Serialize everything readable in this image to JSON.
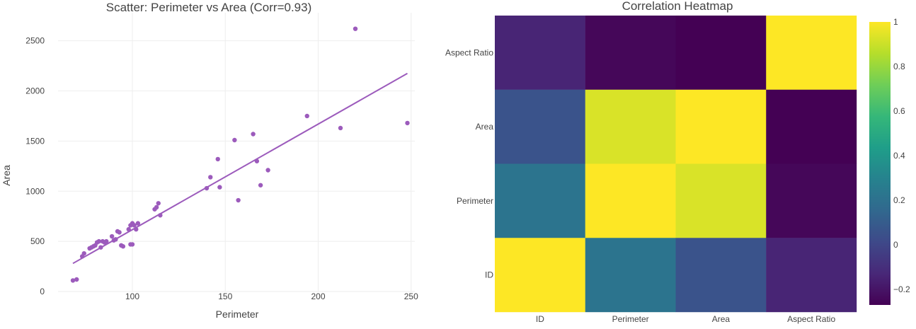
{
  "chart_data": [
    {
      "type": "scatter",
      "title": "Scatter: Perimeter vs Area (Corr=0.93)",
      "xlabel": "Perimeter",
      "ylabel": "Area",
      "xlim": [
        60,
        252
      ],
      "ylim": [
        0,
        2780
      ],
      "xticks": [
        100,
        150,
        200,
        250
      ],
      "yticks": [
        0,
        500,
        1000,
        1500,
        2000,
        2500
      ],
      "grid": true,
      "colors": {
        "points": "#9c5bbc",
        "trend": "#9c5bbc"
      },
      "points": {
        "x": [
          68,
          70,
          73,
          74,
          77,
          78,
          79,
          80,
          81,
          82,
          83,
          84,
          85,
          86,
          89,
          90,
          91,
          92,
          93,
          94,
          95,
          98,
          99,
          99,
          100,
          100,
          101,
          102,
          103,
          112,
          113,
          114,
          115,
          140,
          142,
          146,
          147,
          155,
          157,
          165,
          167,
          169,
          173,
          194,
          212,
          220,
          248
        ],
        "y": [
          110,
          120,
          350,
          380,
          430,
          440,
          450,
          460,
          490,
          500,
          440,
          500,
          490,
          500,
          550,
          510,
          520,
          600,
          590,
          460,
          450,
          620,
          660,
          470,
          680,
          470,
          660,
          620,
          680,
          820,
          840,
          880,
          760,
          1030,
          1140,
          1320,
          1040,
          1510,
          910,
          1570,
          1300,
          1060,
          1210,
          1750,
          1630,
          2620,
          1680
        ]
      },
      "trendline": {
        "x": [
          68,
          248
        ],
        "y": [
          280,
          2175
        ]
      }
    },
    {
      "type": "heatmap",
      "title": "Correlation Heatmap",
      "x": [
        "ID",
        "Perimeter",
        "Area",
        "Aspect Ratio"
      ],
      "y": [
        "Aspect Ratio",
        "Area",
        "Perimeter",
        "ID"
      ],
      "values": [
        [
          -0.14,
          -0.25,
          -0.27,
          1.0
        ],
        [
          0.06,
          0.93,
          1.0,
          -0.27
        ],
        [
          0.22,
          1.0,
          0.93,
          -0.25
        ],
        [
          1.0,
          0.22,
          0.06,
          -0.14
        ]
      ],
      "zmin": -0.27,
      "zmax": 1.0,
      "colorscale": "Viridis",
      "colorbar_ticks": [
        -0.2,
        0,
        0.2,
        0.4,
        0.6,
        0.8,
        1
      ],
      "colorbar_tick_labels": [
        "−0.2",
        "0",
        "0.2",
        "0.4",
        "0.6",
        "0.8",
        "1"
      ]
    }
  ]
}
